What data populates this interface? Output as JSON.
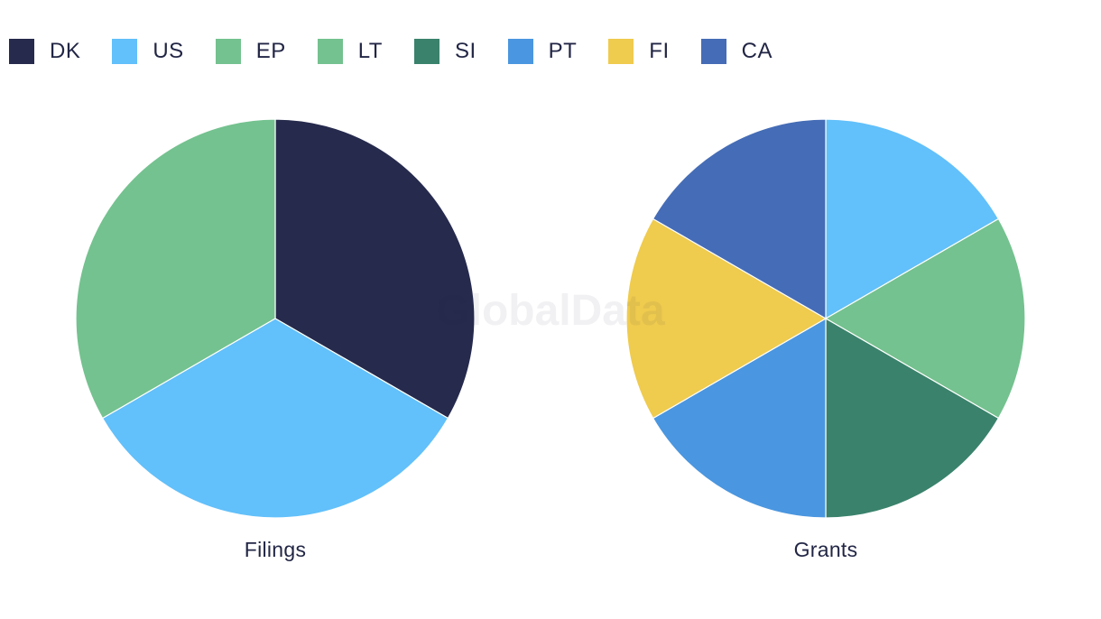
{
  "watermark": "GlobalData",
  "legend": [
    {
      "label": "DK",
      "color": "#262A4C"
    },
    {
      "label": "US",
      "color": "#62C0FA"
    },
    {
      "label": "EP",
      "color": "#74C28F"
    },
    {
      "label": "LT",
      "color": "#74C28F"
    },
    {
      "label": "SI",
      "color": "#3A826C"
    },
    {
      "label": "PT",
      "color": "#4A96E0"
    },
    {
      "label": "FI",
      "color": "#EFCB4E"
    },
    {
      "label": "CA",
      "color": "#456CB6"
    }
  ],
  "chart_data": [
    {
      "type": "pie",
      "title": "Filings",
      "categories": [
        "DK",
        "US",
        "EP"
      ],
      "values": [
        1,
        1,
        1
      ],
      "colors": [
        "#262A4C",
        "#62C0FA",
        "#74C28F"
      ]
    },
    {
      "type": "pie",
      "title": "Grants",
      "categories": [
        "US",
        "LT",
        "SI",
        "PT",
        "FI",
        "CA"
      ],
      "values": [
        1,
        1,
        1,
        1,
        1,
        1
      ],
      "colors": [
        "#62C0FA",
        "#74C28F",
        "#3A826C",
        "#4A96E0",
        "#EFCB4E",
        "#456CB6"
      ]
    }
  ]
}
